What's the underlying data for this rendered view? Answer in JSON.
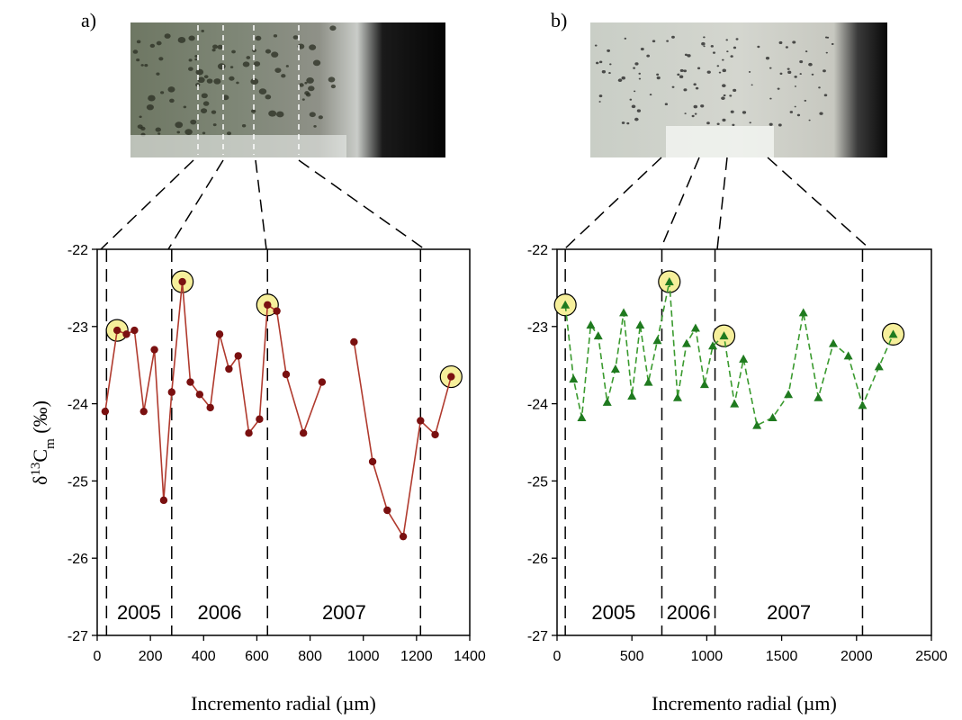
{
  "chart_data": [
    {
      "type": "line",
      "panel_label": "a)",
      "xlabel": "Incremento radial (µm)",
      "ylabel": {
        "prefix": "δ",
        "sup": "13",
        "main": "C",
        "sub": "m",
        "unit": " (‰)"
      },
      "xlim": [
        0,
        1400
      ],
      "ylim": [
        -27,
        -22
      ],
      "xticks": [
        "0",
        "200",
        "400",
        "600",
        "800",
        "1000",
        "1200",
        "1400"
      ],
      "yticks": [
        "-27",
        "-26",
        "-25",
        "-24",
        "-23",
        "-22"
      ],
      "xtick_values": [
        0,
        200,
        400,
        600,
        800,
        1000,
        1200,
        1400
      ],
      "ytick_values": [
        -27,
        -26,
        -25,
        -24,
        -23,
        -22
      ],
      "color": "#b03a2e",
      "marker_color": "#7a1010",
      "marker": "circle",
      "line_style": "solid",
      "highlight_color": "#f6ef9b",
      "segments": [
        [
          [
            30,
            -24.1
          ],
          [
            75,
            -23.05
          ],
          [
            110,
            -23.1
          ],
          [
            140,
            -23.05
          ],
          [
            175,
            -24.1
          ],
          [
            215,
            -23.3
          ],
          [
            250,
            -25.25
          ],
          [
            280,
            -23.85
          ],
          [
            320,
            -22.42
          ],
          [
            350,
            -23.72
          ],
          [
            385,
            -23.88
          ],
          [
            425,
            -24.05
          ],
          [
            460,
            -23.1
          ],
          [
            495,
            -23.55
          ],
          [
            530,
            -23.38
          ],
          [
            570,
            -24.38
          ],
          [
            610,
            -24.2
          ],
          [
            640,
            -22.72
          ],
          [
            675,
            -22.8
          ],
          [
            710,
            -23.62
          ],
          [
            775,
            -24.38
          ],
          [
            845,
            -23.72
          ]
        ],
        [
          [
            965,
            -23.2
          ],
          [
            1035,
            -24.75
          ],
          [
            1090,
            -25.38
          ],
          [
            1150,
            -25.72
          ],
          [
            1215,
            -24.22
          ],
          [
            1270,
            -24.4
          ],
          [
            1330,
            -23.65
          ]
        ]
      ],
      "highlighted_points": [
        [
          75,
          -23.05
        ],
        [
          320,
          -22.42
        ],
        [
          640,
          -22.72
        ],
        [
          1330,
          -23.65
        ]
      ],
      "year_boundaries": [
        35,
        280,
        640,
        1215
      ],
      "year_labels": [
        {
          "text": "2005",
          "x": 157
        },
        {
          "text": "2006",
          "x": 460
        },
        {
          "text": "2007",
          "x": 928
        }
      ]
    },
    {
      "type": "line",
      "panel_label": "b)",
      "xlabel": "Incremento radial (µm)",
      "xlim": [
        0,
        2500
      ],
      "ylim": [
        -27,
        -22
      ],
      "xticks": [
        "0",
        "500",
        "1000",
        "1500",
        "2000",
        "2500"
      ],
      "yticks": [
        "-27",
        "-26",
        "-25",
        "-24",
        "-23",
        "-22"
      ],
      "xtick_values": [
        0,
        500,
        1000,
        1500,
        2000,
        2500
      ],
      "ytick_values": [
        -27,
        -26,
        -25,
        -24,
        -23,
        -22
      ],
      "color": "#3a9a2e",
      "marker_color": "#1f7a1f",
      "marker": "triangle",
      "line_style": "dashed",
      "highlight_color": "#f6ef9b",
      "segments": [
        [
          [
            55,
            -22.72
          ],
          [
            110,
            -23.68
          ],
          [
            165,
            -24.18
          ],
          [
            225,
            -22.98
          ],
          [
            275,
            -23.12
          ],
          [
            335,
            -23.98
          ],
          [
            390,
            -23.55
          ],
          [
            445,
            -22.82
          ],
          [
            500,
            -23.9
          ],
          [
            555,
            -22.98
          ],
          [
            610,
            -23.72
          ],
          [
            670,
            -23.18
          ],
          [
            750,
            -22.42
          ],
          [
            805,
            -23.92
          ],
          [
            865,
            -23.22
          ],
          [
            925,
            -23.02
          ],
          [
            985,
            -23.75
          ],
          [
            1040,
            -23.25
          ],
          [
            1115,
            -23.12
          ],
          [
            1185,
            -24.0
          ],
          [
            1245,
            -23.42
          ],
          [
            1335,
            -24.28
          ],
          [
            1440,
            -24.18
          ],
          [
            1545,
            -23.88
          ],
          [
            1645,
            -22.82
          ],
          [
            1745,
            -23.92
          ],
          [
            1845,
            -23.22
          ],
          [
            1945,
            -23.38
          ],
          [
            2040,
            -24.02
          ],
          [
            2150,
            -23.52
          ],
          [
            2245,
            -23.1
          ]
        ]
      ],
      "highlighted_points": [
        [
          55,
          -22.72
        ],
        [
          750,
          -22.42
        ],
        [
          1115,
          -23.12
        ],
        [
          2245,
          -23.1
        ]
      ],
      "year_boundaries": [
        55,
        700,
        1055,
        2040
      ],
      "year_labels": [
        {
          "text": "2005",
          "x": 378
        },
        {
          "text": "2006",
          "x": 878
        },
        {
          "text": "2007",
          "x": 1548
        }
      ]
    }
  ]
}
